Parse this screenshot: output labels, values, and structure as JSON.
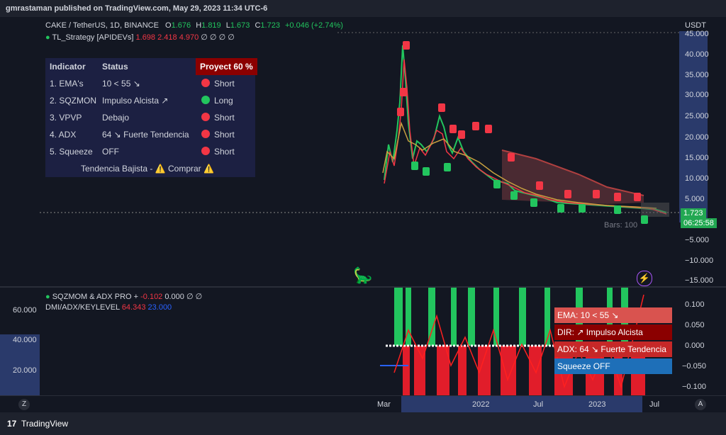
{
  "header": {
    "publisher": "gmrastaman published on TradingView.com, May 29, 2023 11:34 UTC-6"
  },
  "main_legend": {
    "symbol": "CAKE / TetherUS, 1D, BINANCE",
    "o_label": "O",
    "o": "1.676",
    "h_label": "H",
    "h": "1.819",
    "l_label": "L",
    "l": "1.673",
    "c_label": "C",
    "c": "1.723",
    "change": "+0.046 (+2.74%)",
    "strategy": "TL_Strategy [APIDEVs]",
    "s1": "1.698",
    "s2": "2.418",
    "s3": "4.970",
    "s_rest": "∅ ∅ ∅ ∅"
  },
  "table": {
    "headers": [
      "Indicator",
      "Status",
      "Proyect 60 %"
    ],
    "rows": [
      {
        "name": "1. EMA's",
        "status": "10 < 55 ↘",
        "signal": "Short",
        "color": "#f23645"
      },
      {
        "name": "2. SQZMON",
        "status": "Impulso Alcista ↗",
        "signal": "Long",
        "color": "#22c55e"
      },
      {
        "name": "3. VPVP",
        "status": "Debajo",
        "signal": "Short",
        "color": "#f23645"
      },
      {
        "name": "4. ADX",
        "status": "64 ↘ Fuerte Tendencia",
        "signal": "Short",
        "color": "#f23645"
      },
      {
        "name": "5. Squeeze",
        "status": "OFF",
        "signal": "Short",
        "color": "#f23645"
      }
    ],
    "footer": "Tendencia Bajista - ⚠️ Comprar ⚠️"
  },
  "price_axis": {
    "unit": "USDT",
    "ticks": [
      "45.000",
      "40.000",
      "35.000",
      "30.000",
      "25.000",
      "20.000",
      "15.000",
      "10.000",
      "5.000",
      "−5.000",
      "−10.000",
      "−15.000"
    ],
    "last_price": "1.723",
    "countdown": "06:25:58",
    "bars_label": "Bars: 100"
  },
  "sub_legend": {
    "line1_name": "SQZMOM & ADX PRO +",
    "line1_v1": "-0.102",
    "line1_v2": "0.000",
    "line1_rest": "∅ ∅",
    "line2_name": "DMI/ADX/KEYLEVEL",
    "line2_v1": "64.343",
    "line2_v2": "23.000"
  },
  "sub_left_ticks": [
    "60.000",
    "40.000",
    "20.000"
  ],
  "sub_right_ticks": [
    "0.100",
    "0.050",
    "0.000",
    "−0.050",
    "−0.100"
  ],
  "info_boxes": [
    {
      "text": "EMA: 10 < 55 ↘",
      "color": "#d9534f"
    },
    {
      "text": "DIR: ↗ Impulso Alcista",
      "color": "#8b0000"
    },
    {
      "text": "ADX: 64 ↘ Fuerte Tendencia",
      "color": "#c62828"
    },
    {
      "text": "Squeeze OFF",
      "color": "#1e6fb8"
    }
  ],
  "time_axis": [
    "Mar",
    "2022",
    "Jul",
    "2023",
    "Jul"
  ],
  "axis_buttons": {
    "left": "Z",
    "right": "A"
  },
  "footer": {
    "brand": "TradingView",
    "logo": "17"
  },
  "colors": {
    "bg": "#131722",
    "up": "#22c55e",
    "down": "#f23645",
    "panel": "#1e222d",
    "accent": "#2a3a6b"
  }
}
